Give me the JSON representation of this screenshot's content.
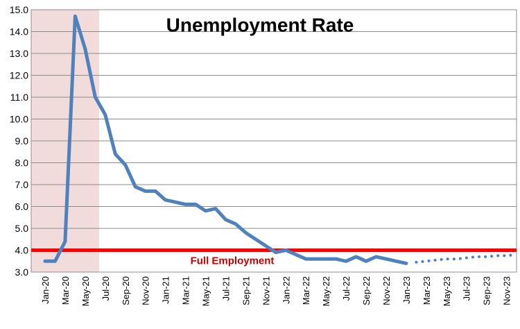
{
  "chart_data": {
    "type": "line",
    "title": "Unemployment Rate",
    "categories": [
      "Jan-20",
      null,
      "Mar-20",
      null,
      "May-20",
      null,
      "Jul-20",
      null,
      "Sep-20",
      null,
      "Nov-20",
      null,
      "Jan-21",
      null,
      "Mar-21",
      null,
      "May-21",
      null,
      "Jul-21",
      null,
      "Sep-21",
      null,
      "Nov-21",
      null,
      "Jan-22",
      null,
      "Mar-22",
      null,
      "May-22",
      null,
      "Jul-22",
      null,
      "Sep-22",
      null,
      "Nov-22",
      null,
      "Jan-23",
      null,
      "Mar-23",
      null,
      "May-23",
      null,
      "Jul-23",
      null,
      "Sep-23",
      null,
      "Nov-23",
      null
    ],
    "series": [
      {
        "color": "#4f81bd",
        "style": "solid",
        "values": [
          3.5,
          3.5,
          4.4,
          14.7,
          13.2,
          11.0,
          10.2,
          8.4,
          7.9,
          6.9,
          6.7,
          6.7,
          6.3,
          6.2,
          6.1,
          6.1,
          5.8,
          5.9,
          5.4,
          5.2,
          4.8,
          4.5,
          4.2,
          3.9,
          4.0,
          3.8,
          3.6,
          3.6,
          3.6,
          3.6,
          3.5,
          3.7,
          3.5,
          3.7,
          3.6,
          3.5,
          3.4,
          null,
          null,
          null,
          null,
          null,
          null,
          null,
          null,
          null,
          null,
          null
        ]
      },
      {
        "color": "#4f81bd",
        "style": "dotted",
        "values": [
          null,
          null,
          null,
          null,
          null,
          null,
          null,
          null,
          null,
          null,
          null,
          null,
          null,
          null,
          null,
          null,
          null,
          null,
          null,
          null,
          null,
          null,
          null,
          null,
          null,
          null,
          null,
          null,
          null,
          null,
          null,
          null,
          null,
          null,
          null,
          null,
          null,
          3.45,
          3.5,
          3.55,
          3.6,
          3.6,
          3.65,
          3.7,
          3.7,
          3.75,
          3.75,
          3.8
        ]
      }
    ],
    "reference_line": {
      "value": 4.0,
      "label": "Full Employment",
      "color": "#ff0000"
    },
    "ylim": [
      3.0,
      15.0
    ],
    "yticks": [
      {
        "value": 3,
        "label": "3.0"
      },
      {
        "value": 4,
        "label": "4.0"
      },
      {
        "value": 5,
        "label": "5.0"
      },
      {
        "value": 6,
        "label": "6.0"
      },
      {
        "value": 7,
        "label": "7.0"
      },
      {
        "value": 8,
        "label": "8.0"
      },
      {
        "value": 9,
        "label": "9.0"
      },
      {
        "value": 10,
        "label": "10.0"
      },
      {
        "value": 11,
        "label": "11.0"
      },
      {
        "value": 12,
        "label": "12.0"
      },
      {
        "value": 13,
        "label": "13.0"
      },
      {
        "value": 14,
        "label": "14.0"
      },
      {
        "value": 15,
        "label": "15.0"
      }
    ],
    "grid": true
  }
}
